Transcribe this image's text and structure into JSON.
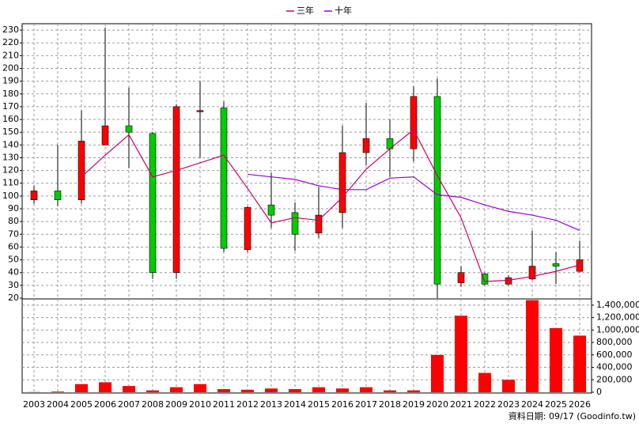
{
  "chart_data": [
    {
      "type": "candlestick",
      "categories": [
        "2003",
        "2004",
        "2005",
        "2006",
        "2007",
        "2008",
        "2009",
        "2010",
        "2011",
        "2012",
        "2013",
        "2014",
        "2015",
        "2016",
        "2017",
        "2018",
        "2019",
        "2020",
        "2021",
        "2022",
        "2023",
        "2024",
        "2025",
        "2026"
      ],
      "open": [
        97,
        104,
        97,
        140,
        155,
        149,
        40,
        166,
        169,
        58,
        93,
        87,
        71,
        87,
        134,
        145,
        137,
        178,
        32,
        39,
        31,
        35,
        47,
        41
      ],
      "high": [
        108,
        140,
        167,
        232,
        185,
        150,
        172,
        190,
        174,
        92,
        118,
        95,
        107,
        155,
        173,
        160,
        186,
        192,
        45,
        40,
        38,
        73,
        56,
        65
      ],
      "low": [
        94,
        92,
        94,
        140,
        122,
        35,
        35,
        130,
        56,
        56,
        75,
        57,
        67,
        75,
        124,
        115,
        127,
        20,
        29,
        30,
        30,
        34,
        31,
        40
      ],
      "close": [
        104,
        97,
        143,
        155,
        150,
        40,
        170,
        167,
        59,
        91,
        85,
        70,
        85,
        134,
        145,
        137,
        178,
        31,
        40,
        31,
        36,
        45,
        45,
        50
      ],
      "up_color": "#ff0000",
      "down_color": "#00cc00",
      "ylim": [
        20,
        235
      ],
      "yticks": [
        20,
        30,
        40,
        50,
        60,
        70,
        80,
        90,
        100,
        110,
        120,
        130,
        140,
        150,
        160,
        170,
        180,
        190,
        200,
        210,
        220,
        230
      ],
      "grid": true,
      "legend": "top",
      "series": [
        {
          "name": "三年",
          "color": "#cc0066",
          "values": [
            null,
            null,
            115,
            132,
            148,
            115,
            120,
            126,
            132,
            106,
            79,
            83,
            81,
            99,
            121,
            137,
            152,
            116,
            83,
            33,
            34,
            37,
            41,
            46
          ]
        },
        {
          "name": "十年",
          "color": "#9900cc",
          "values": [
            null,
            null,
            null,
            null,
            null,
            null,
            null,
            null,
            null,
            117,
            115,
            113,
            108,
            105,
            105,
            114,
            115,
            101,
            99,
            93,
            88,
            85,
            81,
            73
          ]
        }
      ]
    },
    {
      "type": "bar",
      "values": [
        3000,
        10000,
        130000,
        160000,
        100000,
        30000,
        80000,
        130000,
        50000,
        40000,
        60000,
        50000,
        80000,
        60000,
        80000,
        30000,
        30000,
        600000,
        1230000,
        310000,
        200000,
        1480000,
        1030000,
        910000
      ],
      "color": "#ff0000",
      "ylim": [
        0,
        1500000
      ],
      "yticks": [
        0,
        {
          "value": 200000,
          "label": "200,000"
        },
        {
          "value": 400000,
          "label": "400,000"
        },
        {
          "value": 600000,
          "label": "600,000"
        },
        {
          "value": 800000,
          "label": "800,000"
        },
        {
          "value": 1000000,
          "label": "1,000,000"
        },
        {
          "value": 1200000,
          "label": "1,200,000"
        },
        {
          "value": 1400000,
          "label": "1,400,000"
        }
      ],
      "grid": true,
      "source": "資料日期: 09/17  (Goodinfo.tw)"
    }
  ]
}
